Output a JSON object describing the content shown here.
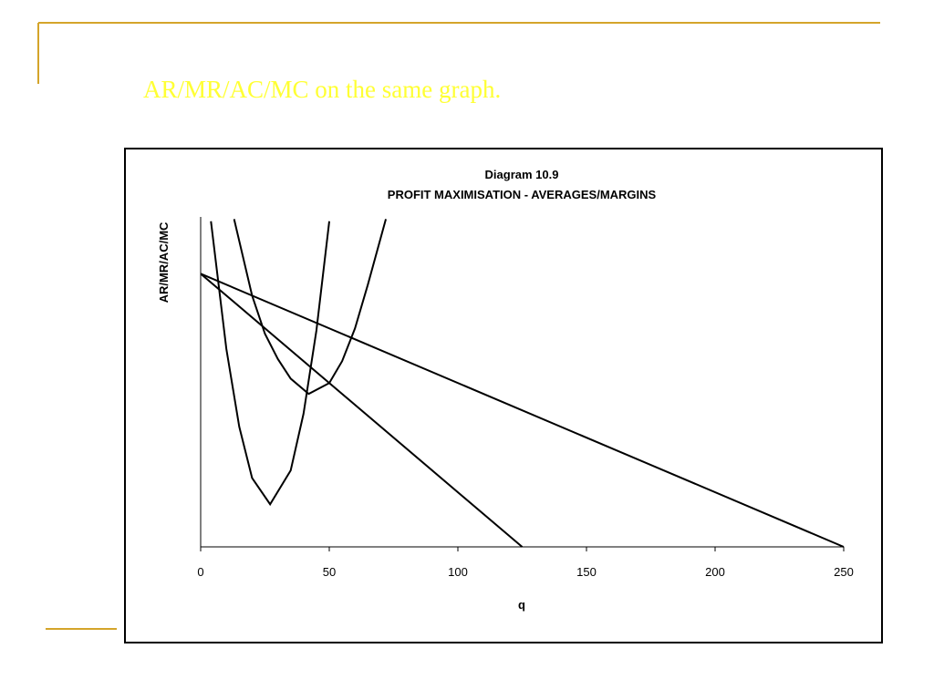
{
  "slide_title": "AR/MR/AC/MC on the same graph.",
  "chart_data": {
    "type": "line",
    "title": "Diagram 10.9",
    "subtitle": "PROFIT MAXIMISATION - AVERAGES/MARGINS",
    "x_label": "q",
    "y_label": "AR/MR/AC/MC",
    "xlim": [
      0,
      250
    ],
    "xticks": [
      0,
      50,
      100,
      150,
      200,
      250
    ],
    "ylim": [
      0,
      302
    ],
    "grid": false,
    "series": [
      {
        "color": "#000000",
        "x": [
          0,
          250
        ],
        "values": [
          250,
          0
        ]
      },
      {
        "color": "#000000",
        "x": [
          0,
          125
        ],
        "values": [
          250,
          0
        ]
      },
      {
        "color": "#000000",
        "x": [
          4,
          10,
          15,
          20,
          27,
          35,
          40,
          45,
          50
        ],
        "values": [
          298,
          181,
          110,
          63,
          39,
          70,
          122,
          198,
          298
        ]
      },
      {
        "color": "#000000",
        "x": [
          13,
          20,
          25,
          30,
          35,
          42,
          50,
          55,
          60,
          65,
          72
        ],
        "values": [
          300,
          230,
          195,
          172,
          154,
          140,
          150,
          170,
          200,
          240,
          300
        ]
      }
    ]
  }
}
